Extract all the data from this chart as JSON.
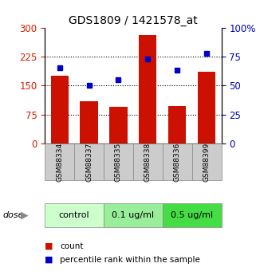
{
  "title": "GDS1809 / 1421578_at",
  "samples": [
    "GSM88334",
    "GSM88337",
    "GSM88335",
    "GSM88338",
    "GSM88336",
    "GSM88399"
  ],
  "counts": [
    175,
    110,
    95,
    280,
    98,
    185
  ],
  "percentiles": [
    65,
    50,
    55,
    73,
    63,
    78
  ],
  "groups": [
    {
      "label": "control",
      "indices": [
        0,
        1
      ],
      "color": "#ccffcc"
    },
    {
      "label": "0.1 ug/ml",
      "indices": [
        2,
        3
      ],
      "color": "#99ee99"
    },
    {
      "label": "0.5 ug/ml",
      "indices": [
        4,
        5
      ],
      "color": "#44dd44"
    }
  ],
  "bar_color": "#cc1100",
  "marker_color": "#0000cc",
  "left_yticks": [
    0,
    75,
    150,
    225,
    300
  ],
  "right_yticks": [
    0,
    25,
    50,
    75,
    100
  ],
  "left_color": "#cc2200",
  "right_color": "#0000bb",
  "background_color": "#ffffff",
  "plot_bg_color": "#ffffff",
  "label_bg_color": "#cccccc",
  "legend_count_label": "count",
  "legend_pct_label": "percentile rank within the sample",
  "dose_label": "dose"
}
